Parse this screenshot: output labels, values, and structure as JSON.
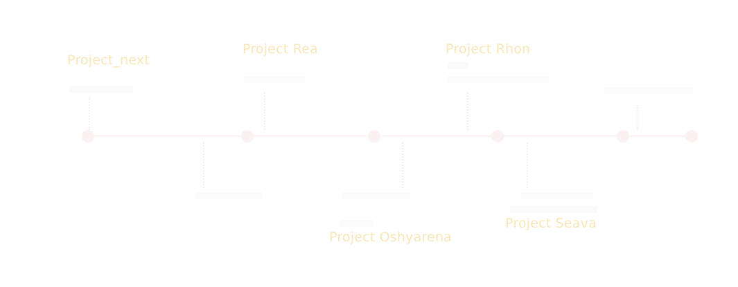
{
  "timeline": {
    "projects": [
      {
        "title": "Project_next"
      },
      {
        "title": "Project Rea"
      },
      {
        "title": "Project Rhon"
      },
      {
        "title": "Project Oshyarena"
      },
      {
        "title": "Project Seava"
      }
    ]
  },
  "colors": {
    "title": "#f7e7b8",
    "line": "#fbf5f5",
    "node": "#fbf1f1",
    "faint_text": "#f6f4f4"
  }
}
